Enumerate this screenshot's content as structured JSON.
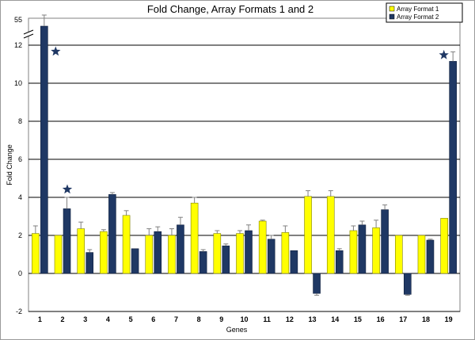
{
  "chart_data": {
    "type": "bar",
    "title": "Fold Change, Array Formats 1 and 2",
    "xlabel": "Genes",
    "ylabel": "Fold Change",
    "categories": [
      "1",
      "2",
      "3",
      "4",
      "5",
      "6",
      "7",
      "8",
      "9",
      "10",
      "11",
      "12",
      "13",
      "14",
      "15",
      "16",
      "17",
      "18",
      "19"
    ],
    "ylim": [
      -2,
      12
    ],
    "yticks": [
      "-2",
      "0",
      "2",
      "4",
      "6",
      "8",
      "10",
      "12"
    ],
    "axis_break": {
      "after": 12,
      "label": "55"
    },
    "grid": true,
    "legend_position": "top-right",
    "series": [
      {
        "name": "Array Format 1",
        "color": "#ffff00",
        "values": [
          2.1,
          2.0,
          2.35,
          2.2,
          3.05,
          2.0,
          2.0,
          3.7,
          2.1,
          2.1,
          2.75,
          2.15,
          4.05,
          4.05,
          2.25,
          2.4,
          2.0,
          2.0,
          2.9
        ],
        "errors": [
          0.4,
          0.0,
          0.35,
          0.1,
          0.25,
          0.35,
          0.35,
          0.3,
          0.15,
          0.15,
          0.05,
          0.35,
          0.3,
          0.3,
          0.25,
          0.4,
          0.0,
          0.0,
          0.0
        ]
      },
      {
        "name": "Array Format 2",
        "color": "#1f3864",
        "values": [
          55,
          3.4,
          1.1,
          4.15,
          1.3,
          2.2,
          2.55,
          1.15,
          1.45,
          2.25,
          1.8,
          1.2,
          -1.05,
          1.2,
          2.55,
          3.35,
          -1.1,
          1.75,
          11.15
        ],
        "errors": [
          0.6,
          0.6,
          0.15,
          0.1,
          0.0,
          0.25,
          0.4,
          0.1,
          0.1,
          0.3,
          0.2,
          0.0,
          0.1,
          0.1,
          0.2,
          0.25,
          0.05,
          0.05,
          0.5
        ]
      }
    ],
    "star_categories": [
      "1",
      "2",
      "19"
    ],
    "star_color": "#1f3864"
  }
}
